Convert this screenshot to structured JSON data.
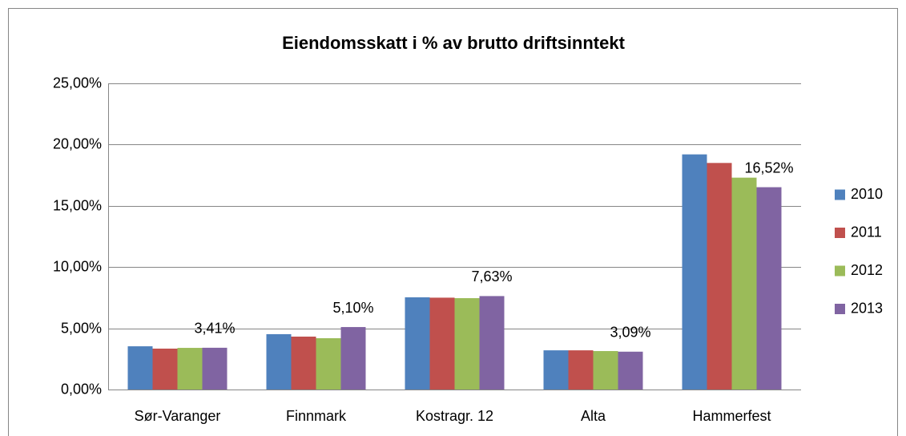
{
  "chart_data": {
    "type": "bar",
    "title": "Eiendomsskatt i % av brutto driftsinntekt",
    "categories": [
      "Sør-Varanger",
      "Finnmark",
      "Kostragr. 12",
      "Alta",
      "Hammerfest"
    ],
    "series": [
      {
        "name": "2010",
        "color": "#4f81bd",
        "values": [
          3.53,
          4.52,
          7.53,
          3.2,
          19.2
        ]
      },
      {
        "name": "2011",
        "color": "#c0504d",
        "values": [
          3.34,
          4.32,
          7.5,
          3.2,
          18.5
        ]
      },
      {
        "name": "2012",
        "color": "#9bbb59",
        "values": [
          3.4,
          4.19,
          7.46,
          3.14,
          17.3
        ]
      },
      {
        "name": "2013",
        "color": "#8064a2",
        "values": [
          3.41,
          5.1,
          7.63,
          3.09,
          16.52
        ],
        "value_labels": [
          "3,41%",
          "5,10%",
          "7,63%",
          "3,09%",
          "16,52%"
        ]
      }
    ],
    "ylim": [
      0,
      25
    ],
    "yticks": [
      {
        "value": 0,
        "label": "0,00%"
      },
      {
        "value": 5,
        "label": "5,00%"
      },
      {
        "value": 10,
        "label": "10,00%"
      },
      {
        "value": 15,
        "label": "15,00%"
      },
      {
        "value": 20,
        "label": "20,00%"
      },
      {
        "value": 25,
        "label": "25,00%"
      }
    ],
    "grid": true,
    "legend": "right"
  }
}
